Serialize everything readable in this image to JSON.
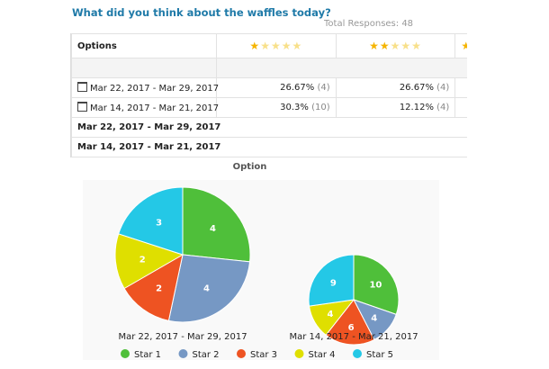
{
  "question": "What did you think about the waffles today?",
  "total_responses": "Total Responses: 48",
  "table": {
    "header": {
      "options": "Options",
      "columns": [
        {
          "stars": 1
        },
        {
          "stars": 2
        },
        {
          "stars": 3
        }
      ]
    },
    "rows": [
      {
        "label": "Mar 22, 2017 - Mar 29, 2017",
        "icon": "calendar-icon",
        "cells": [
          {
            "pct": "26.67%",
            "count": "(4)"
          },
          {
            "pct": "26.67%",
            "count": "(4)"
          }
        ]
      },
      {
        "label": "Mar 14, 2017 - Mar 21, 2017",
        "icon": "calendar-icon",
        "cells": [
          {
            "pct": "30.3%",
            "count": "(10)"
          },
          {
            "pct": "12.12%",
            "count": "(4)"
          }
        ]
      }
    ],
    "group_rows": [
      "Mar 22, 2017 - Mar 29, 2017",
      "Mar 14, 2017 - Mar 21, 2017"
    ]
  },
  "chart_data": {
    "type": "pie",
    "title": "Option",
    "legend_position": "bottom",
    "categories": [
      "Star 1",
      "Star 2",
      "Star 3",
      "Star 4",
      "Star 5"
    ],
    "colors": [
      "#4fbf3a",
      "#7698c4",
      "#ee5322",
      "#dfdf00",
      "#24c8e6"
    ],
    "series": [
      {
        "name": "Mar 22, 2017 - Mar 29, 2017",
        "values": [
          4,
          4,
          2,
          2,
          3
        ]
      },
      {
        "name": "Mar 14, 2017 - Mar 21, 2017",
        "values": [
          10,
          4,
          6,
          4,
          9
        ]
      }
    ]
  }
}
